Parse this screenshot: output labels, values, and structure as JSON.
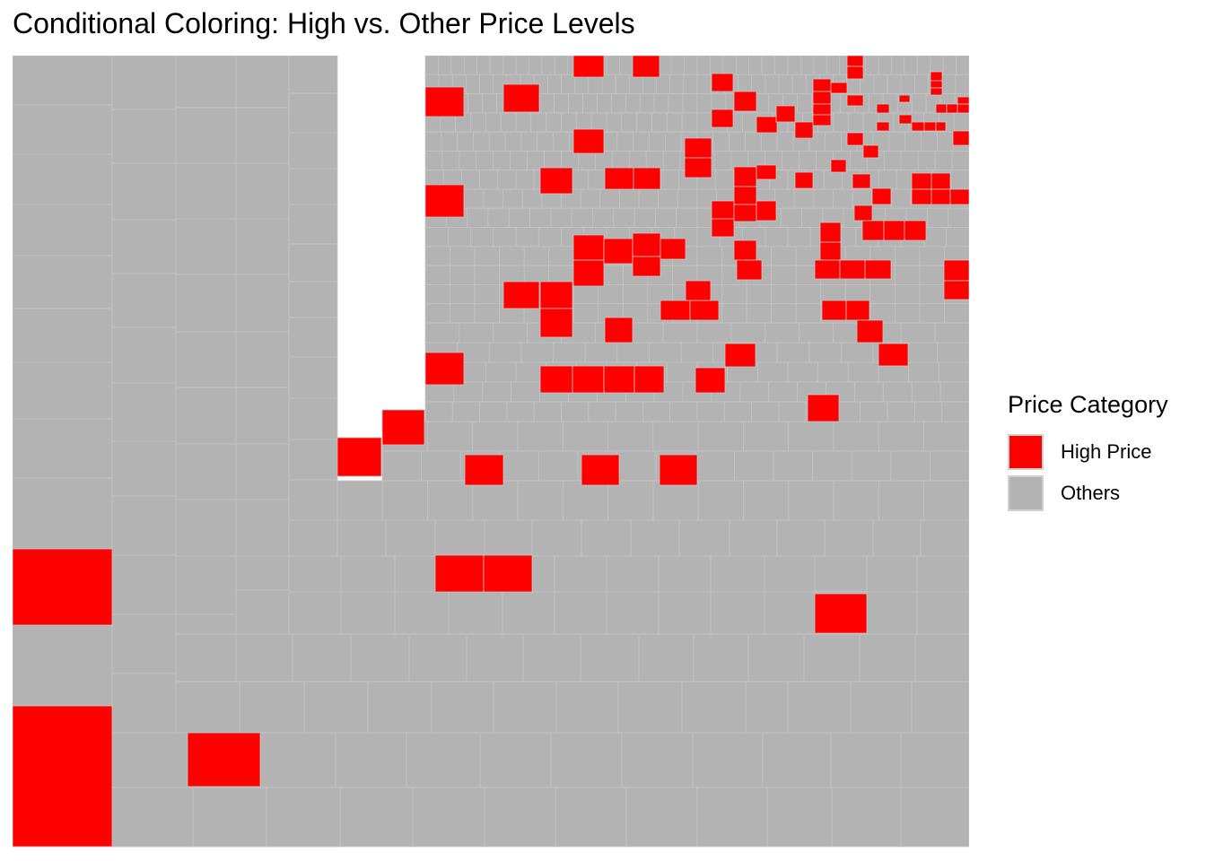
{
  "chart_data": {
    "type": "treemap",
    "title": "Conditional Coloring: High vs. Other Price Levels",
    "legend": {
      "title": "Price Category",
      "placement": "right",
      "entries": [
        {
          "label": "High Price",
          "color": "#ff0000"
        },
        {
          "label": "Others",
          "color": "#b3b3b3"
        }
      ]
    },
    "highlighted_tile_count": 130,
    "grid": false
  },
  "colors": {
    "high": "#ff0000",
    "others": "#b3b3b3",
    "tile_border": "#c4c4c4"
  }
}
